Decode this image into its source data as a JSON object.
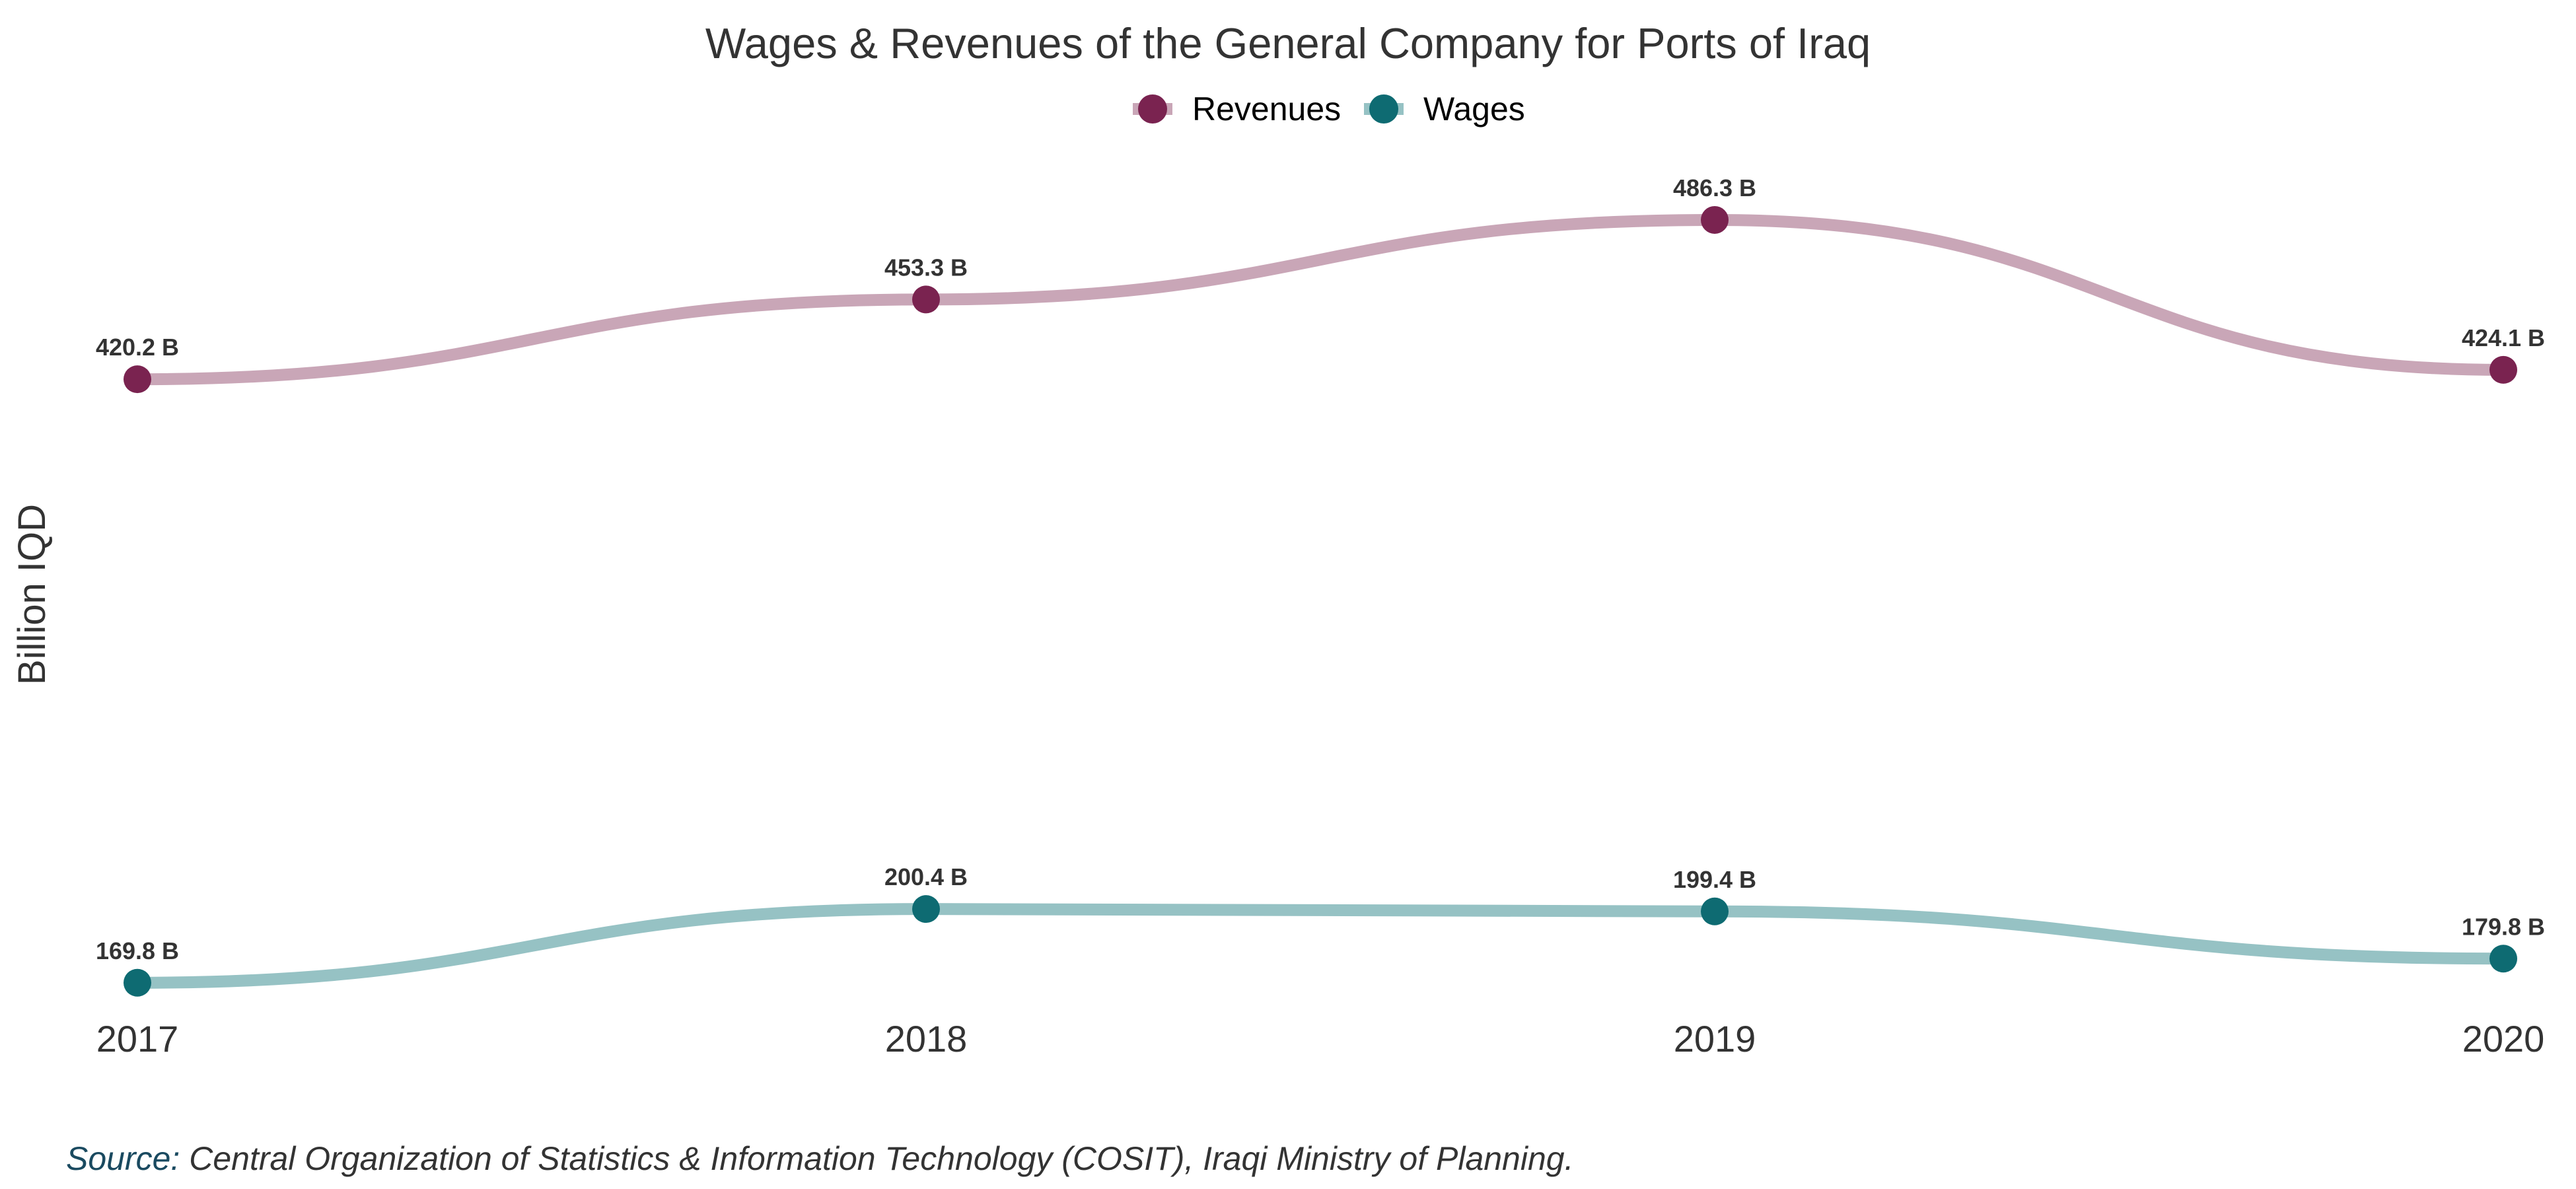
{
  "chart_data": {
    "type": "line",
    "title": "Wages & Revenues of the General Company for Ports of Iraq",
    "ylabel": "Billion IQD",
    "xlabel": "",
    "categories": [
      "2017",
      "2018",
      "2019",
      "2020"
    ],
    "ylim": [
      150,
      520
    ],
    "grid": false,
    "legend_position": "top-center",
    "series": [
      {
        "name": "Revenues",
        "values": [
          420.2,
          453.3,
          486.3,
          424.1
        ],
        "labels": [
          "420.2 B",
          "453.3 B",
          "486.3 B",
          "424.1 B"
        ],
        "line_color": "#c9a6b7",
        "point_color": "#7a2350"
      },
      {
        "name": "Wages",
        "values": [
          169.8,
          200.4,
          199.4,
          179.8
        ],
        "labels": [
          "169.8 B",
          "200.4 B",
          "199.4 B",
          "179.8 B"
        ],
        "line_color": "#96c2c4",
        "point_color": "#0e6b72"
      }
    ]
  },
  "source": {
    "prefix": "Source:",
    "text": " Central Organization of Statistics & Information Technology (COSIT), Iraqi Ministry of Planning."
  }
}
